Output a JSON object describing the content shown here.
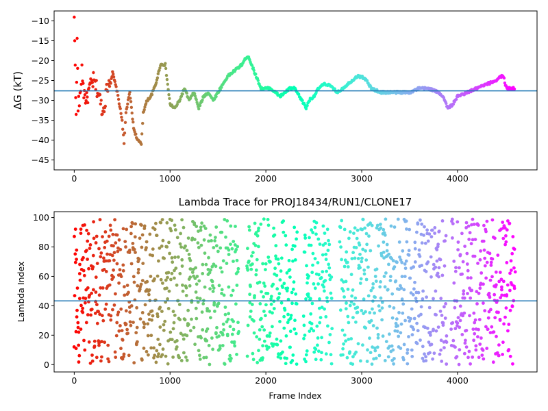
{
  "chart_data": [
    {
      "type": "scatter",
      "title": "",
      "xlabel": "",
      "ylabel": "ΔG (kT)",
      "xlim": [
        -210,
        4830
      ],
      "ylim": [
        -47.5,
        -7.5
      ],
      "xticks": [
        0,
        1000,
        2000,
        3000,
        4000
      ],
      "yticks": [
        -45,
        -40,
        -35,
        -30,
        -25,
        -20,
        -15,
        -10
      ],
      "xtick_labels": [
        "0",
        "1000",
        "2000",
        "3000",
        "4000"
      ],
      "ytick_labels": [
        "−45",
        "−40",
        "−35",
        "−30",
        "−25",
        "−20",
        "−15",
        "−10"
      ],
      "hline": -27.6,
      "grid": false,
      "colormap": "rainbow (red → violet along frame index)",
      "series": [
        {
          "x": [
            0,
            10,
            20,
            30,
            40,
            60,
            80,
            100,
            130,
            160,
            200,
            250,
            300,
            350,
            400,
            450,
            500,
            520,
            540,
            580,
            620,
            660,
            700,
            720,
            760,
            800,
            850,
            900,
            950,
            1000,
            1050,
            1100,
            1150,
            1200,
            1250,
            1300,
            1350,
            1400,
            1450,
            1500,
            1550,
            1600,
            1650,
            1700,
            1750,
            1800,
            1820,
            1850,
            1900,
            1950,
            2000,
            2050,
            2100,
            2150,
            2200,
            2250,
            2300,
            2350,
            2400,
            2420,
            2450,
            2500,
            2550,
            2600,
            2650,
            2700,
            2750,
            2800,
            2850,
            2900,
            2950,
            3000,
            3050,
            3100,
            3200,
            3300,
            3400,
            3450,
            3500,
            3600,
            3700,
            3800,
            3850,
            3900,
            3950,
            4000,
            4100,
            4200,
            4300,
            4400,
            4450,
            4480,
            4500,
            4520,
            4560,
            4600
          ],
          "y": [
            -10,
            -20,
            -35,
            -15,
            -31,
            -30,
            -22,
            -28,
            -30,
            -27,
            -25,
            -28,
            -33,
            -26,
            -23,
            -28,
            -35,
            -41,
            -33,
            -28,
            -37,
            -40,
            -41,
            -33,
            -30,
            -29,
            -26,
            -21,
            -21,
            -31,
            -32,
            -30,
            -27,
            -30,
            -28,
            -32,
            -29,
            -28,
            -30,
            -28,
            -26,
            -24,
            -23,
            -22,
            -21,
            -19,
            -19,
            -21,
            -24,
            -27,
            -27,
            -27,
            -28,
            -29,
            -28,
            -27,
            -27,
            -29,
            -31,
            -32,
            -30,
            -29,
            -27,
            -26,
            -26,
            -27,
            -28,
            -27,
            -26,
            -25,
            -24,
            -24,
            -25,
            -27,
            -28,
            -28,
            -28,
            -28,
            -28,
            -27,
            -27,
            -28,
            -29,
            -32,
            -31,
            -29,
            -28,
            -27,
            -26,
            -25,
            -24,
            -24,
            -26,
            -27,
            -27,
            -27
          ]
        }
      ]
    },
    {
      "type": "scatter",
      "title": "Lambda Trace for PROJ18434/RUN1/CLONE17",
      "xlabel": "Frame Index",
      "ylabel": "Lambda Index",
      "xlim": [
        -210,
        4830
      ],
      "ylim": [
        -5,
        104
      ],
      "xticks": [
        0,
        1000,
        2000,
        3000,
        4000
      ],
      "yticks": [
        0,
        20,
        40,
        60,
        80,
        100
      ],
      "xtick_labels": [
        "0",
        "1000",
        "2000",
        "3000",
        "4000"
      ],
      "ytick_labels": [
        "0",
        "20",
        "40",
        "60",
        "80",
        "100"
      ],
      "hline": 43.3,
      "grid": false,
      "colormap": "rainbow (red → violet along frame index)",
      "n_points": 1600,
      "range": [
        0,
        99
      ]
    }
  ]
}
